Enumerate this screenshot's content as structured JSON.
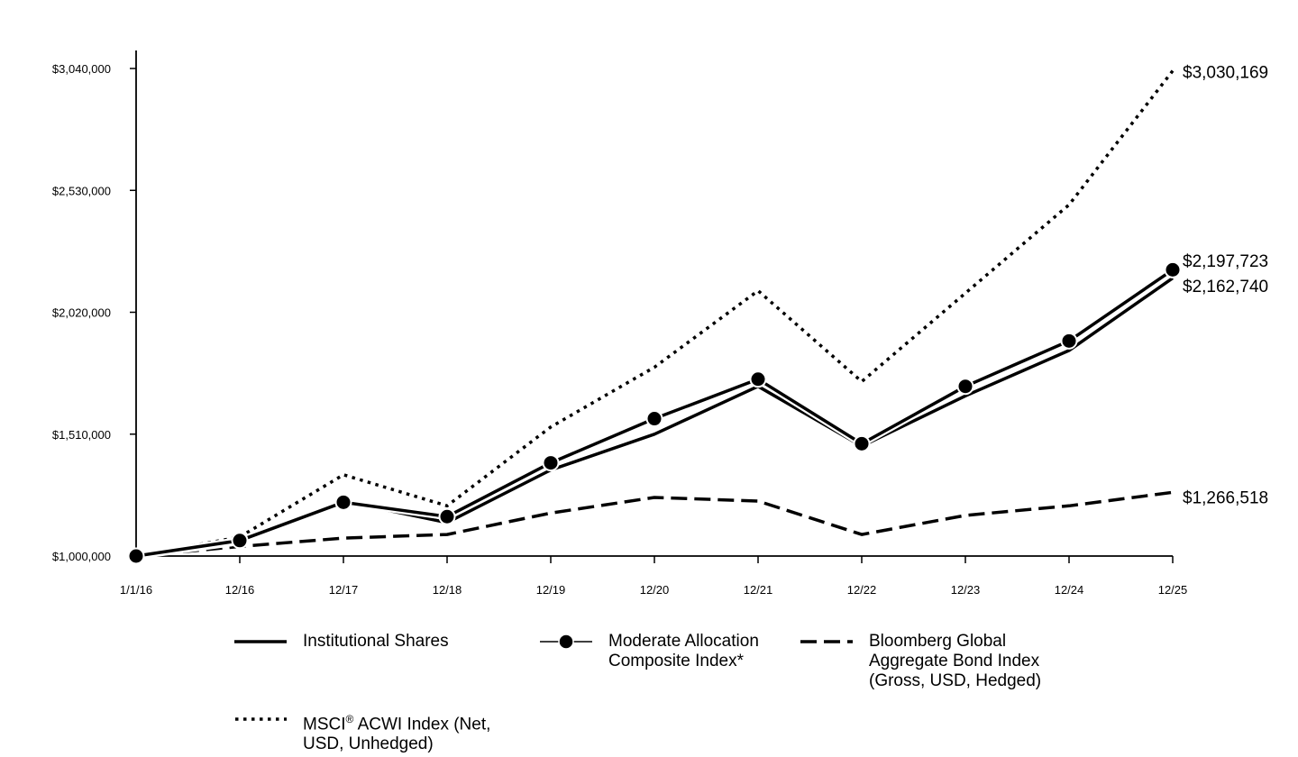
{
  "chart_data": {
    "type": "line",
    "title": "",
    "xlabel": "",
    "ylabel": "",
    "categories": [
      "1/1/16",
      "12/16",
      "12/17",
      "12/18",
      "12/19",
      "12/20",
      "12/21",
      "12/22",
      "12/23",
      "12/24",
      "12/25"
    ],
    "y_ticks": [
      1000000,
      1510000,
      2020000,
      2530000,
      3040000
    ],
    "y_tick_labels": [
      "$1,000,000",
      "$1,510,000",
      "$2,020,000",
      "$2,530,000",
      "$3,040,000"
    ],
    "ylim": [
      1000000,
      3040000
    ],
    "grid": false,
    "legend_position": "bottom",
    "series": [
      {
        "name": "Institutional Shares",
        "style": "solid",
        "values": [
          1000000,
          1060000,
          1230000,
          1140000,
          1360000,
          1510000,
          1710000,
          1460000,
          1670000,
          1860000,
          2162740
        ],
        "end_label": "$2,162,740"
      },
      {
        "name": "Moderate Allocation Composite Index*",
        "style": "solid-markers",
        "values": [
          1000000,
          1065000,
          1225000,
          1165000,
          1390000,
          1575000,
          1740000,
          1470000,
          1710000,
          1900000,
          2197723
        ],
        "end_label": "$2,197,723"
      },
      {
        "name": "Bloomberg Global Aggregate Bond Index (Gross, USD, Hedged)",
        "style": "dashed",
        "values": [
          1000000,
          1040000,
          1075000,
          1090000,
          1180000,
          1245000,
          1230000,
          1090000,
          1170000,
          1210000,
          1266518
        ],
        "end_label": "$1,266,518"
      },
      {
        "name": "MSCI® ACWI Index (Net, USD, Unhedged)",
        "style": "dotted",
        "values": [
          1000000,
          1080000,
          1340000,
          1210000,
          1540000,
          1790000,
          2110000,
          1730000,
          2100000,
          2470000,
          3030169
        ],
        "end_label": "$3,030,169"
      }
    ]
  },
  "legend": {
    "institutional": "Institutional Shares",
    "moderate": "Moderate Allocation\nComposite Index*",
    "bloomberg": "Bloomberg Global\nAggregate Bond Index\n(Gross, USD, Hedged)",
    "msci_main": "MSCI",
    "msci_reg": "®",
    "msci_rest": " ACWI Index (Net,\nUSD, Unhedged)"
  },
  "colors": {
    "line": "#000000",
    "background": "#ffffff"
  }
}
